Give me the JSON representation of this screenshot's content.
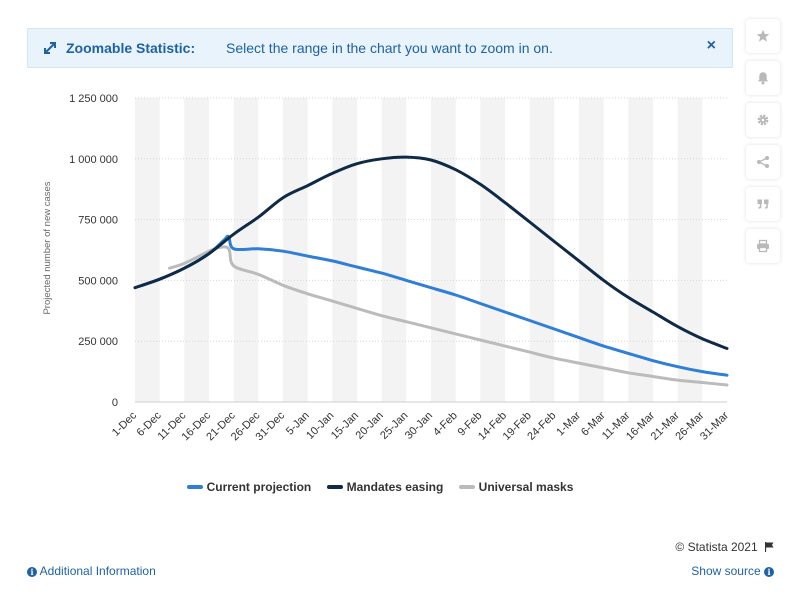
{
  "banner": {
    "title": "Zoomable Statistic:",
    "text": "Select the range in the chart you want to zoom in on.",
    "close": "×"
  },
  "sidebar": [
    "star-icon",
    "bell-icon",
    "gear-icon",
    "share-icon",
    "quote-icon",
    "print-icon"
  ],
  "colors": {
    "current": "#2f7ed8",
    "mandates": "#0e2a47",
    "masks": "#bbbbbb",
    "accent": "#1e62a5"
  },
  "credit": "© Statista 2021",
  "footer": {
    "additional_info": "Additional Information",
    "show_source": "Show source"
  },
  "chart_data": {
    "type": "line",
    "ylabel": "Projected number of new cases",
    "ylim": [
      0,
      1250000
    ],
    "yticks": [
      0,
      250000,
      500000,
      750000,
      1000000,
      1250000
    ],
    "ytick_labels": [
      "0",
      "250 000",
      "500 000",
      "750 000",
      "1 000 000",
      "1 250 000"
    ],
    "x": [
      "1-Dec",
      "6-Dec",
      "11-Dec",
      "16-Dec",
      "21-Dec",
      "26-Dec",
      "31-Dec",
      "5-Jan",
      "10-Jan",
      "15-Jan",
      "20-Jan",
      "25-Jan",
      "30-Jan",
      "4-Feb",
      "9-Feb",
      "14-Feb",
      "19-Feb",
      "24-Feb",
      "1-Mar",
      "6-Mar",
      "11-Mar",
      "16-Mar",
      "21-Mar",
      "26-Mar",
      "31-Mar"
    ],
    "grid": "horizontal",
    "legend": "bottom",
    "series": [
      {
        "name": "Current projection",
        "points": [
          [
            "1-Dec",
            470000
          ],
          [
            "6-Dec",
            505000
          ],
          [
            "11-Dec",
            550000
          ],
          [
            "16-Dec",
            610000
          ],
          [
            "19-Dec",
            665000
          ],
          [
            "20-Dec",
            680000
          ],
          [
            "21-Dec",
            630000
          ],
          [
            "26-Dec",
            630000
          ],
          [
            "31-Dec",
            620000
          ],
          [
            "5-Jan",
            600000
          ],
          [
            "10-Jan",
            580000
          ],
          [
            "15-Jan",
            555000
          ],
          [
            "20-Jan",
            530000
          ],
          [
            "25-Jan",
            500000
          ],
          [
            "30-Jan",
            470000
          ],
          [
            "4-Feb",
            440000
          ],
          [
            "9-Feb",
            405000
          ],
          [
            "14-Feb",
            370000
          ],
          [
            "19-Feb",
            335000
          ],
          [
            "24-Feb",
            300000
          ],
          [
            "1-Mar",
            265000
          ],
          [
            "6-Mar",
            230000
          ],
          [
            "11-Mar",
            200000
          ],
          [
            "16-Mar",
            170000
          ],
          [
            "21-Mar",
            145000
          ],
          [
            "26-Mar",
            125000
          ],
          [
            "31-Mar",
            110000
          ]
        ]
      },
      {
        "name": "Mandates easing",
        "points": [
          [
            "1-Dec",
            470000
          ],
          [
            "6-Dec",
            505000
          ],
          [
            "11-Dec",
            550000
          ],
          [
            "16-Dec",
            610000
          ],
          [
            "21-Dec",
            690000
          ],
          [
            "26-Dec",
            760000
          ],
          [
            "31-Dec",
            840000
          ],
          [
            "5-Jan",
            890000
          ],
          [
            "10-Jan",
            940000
          ],
          [
            "15-Jan",
            980000
          ],
          [
            "20-Jan",
            1000000
          ],
          [
            "25-Jan",
            1007000
          ],
          [
            "30-Jan",
            995000
          ],
          [
            "4-Feb",
            955000
          ],
          [
            "9-Feb",
            895000
          ],
          [
            "14-Feb",
            820000
          ],
          [
            "19-Feb",
            740000
          ],
          [
            "24-Feb",
            660000
          ],
          [
            "1-Mar",
            580000
          ],
          [
            "6-Mar",
            500000
          ],
          [
            "11-Mar",
            430000
          ],
          [
            "16-Mar",
            370000
          ],
          [
            "21-Mar",
            310000
          ],
          [
            "26-Mar",
            260000
          ],
          [
            "31-Mar",
            220000
          ]
        ]
      },
      {
        "name": "Universal masks",
        "points": [
          [
            "8-Dec",
            550000
          ],
          [
            "11-Dec",
            570000
          ],
          [
            "16-Dec",
            620000
          ],
          [
            "18-Dec",
            635000
          ],
          [
            "20-Dec",
            630000
          ],
          [
            "21-Dec",
            560000
          ],
          [
            "26-Dec",
            525000
          ],
          [
            "31-Dec",
            480000
          ],
          [
            "5-Jan",
            445000
          ],
          [
            "10-Jan",
            415000
          ],
          [
            "15-Jan",
            385000
          ],
          [
            "20-Jan",
            355000
          ],
          [
            "25-Jan",
            330000
          ],
          [
            "30-Jan",
            305000
          ],
          [
            "4-Feb",
            280000
          ],
          [
            "9-Feb",
            255000
          ],
          [
            "14-Feb",
            230000
          ],
          [
            "19-Feb",
            205000
          ],
          [
            "24-Feb",
            180000
          ],
          [
            "1-Mar",
            160000
          ],
          [
            "6-Mar",
            140000
          ],
          [
            "11-Mar",
            120000
          ],
          [
            "16-Mar",
            105000
          ],
          [
            "21-Mar",
            90000
          ],
          [
            "26-Mar",
            80000
          ],
          [
            "31-Mar",
            70000
          ]
        ]
      }
    ]
  }
}
